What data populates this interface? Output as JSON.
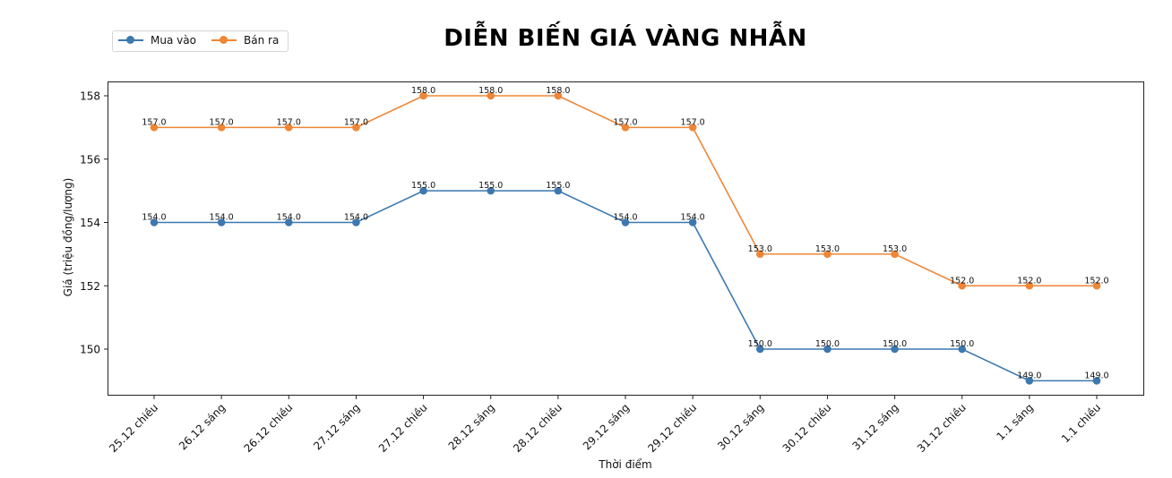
{
  "chart_data": {
    "type": "line",
    "title": "DIỄN BIẾN GIÁ VÀNG NHẪN",
    "xlabel": "Thời điểm",
    "ylabel": "Giá (triệu đồng/lượng)",
    "categories": [
      "25.12 chiều",
      "26.12 sáng",
      "26.12 chiều",
      "27.12 sáng",
      "27.12 chiều",
      "28.12 sáng",
      "28.12 chiều",
      "29.12 sáng",
      "29.12 chiều",
      "30.12 sáng",
      "30.12 chiều",
      "31.12 sáng",
      "31.12 chiều",
      "1.1 sáng",
      "1.1 chiều"
    ],
    "series": [
      {
        "name": "Mua vào",
        "color": "#3d78b0",
        "values": [
          154.0,
          154.0,
          154.0,
          154.0,
          155.0,
          155.0,
          155.0,
          154.0,
          154.0,
          150.0,
          150.0,
          150.0,
          150.0,
          149.0,
          149.0
        ]
      },
      {
        "name": "Bán ra",
        "color": "#ef8636",
        "values": [
          157.0,
          157.0,
          157.0,
          157.0,
          158.0,
          158.0,
          158.0,
          157.0,
          157.0,
          153.0,
          153.0,
          153.0,
          152.0,
          152.0,
          152.0
        ]
      }
    ],
    "yticks": [
      150,
      152,
      154,
      156,
      158
    ],
    "ylim": [
      148.55,
      158.45
    ],
    "grid": false,
    "legend_position": "upper left",
    "data_labels": true,
    "x_tick_rotation": 45
  }
}
